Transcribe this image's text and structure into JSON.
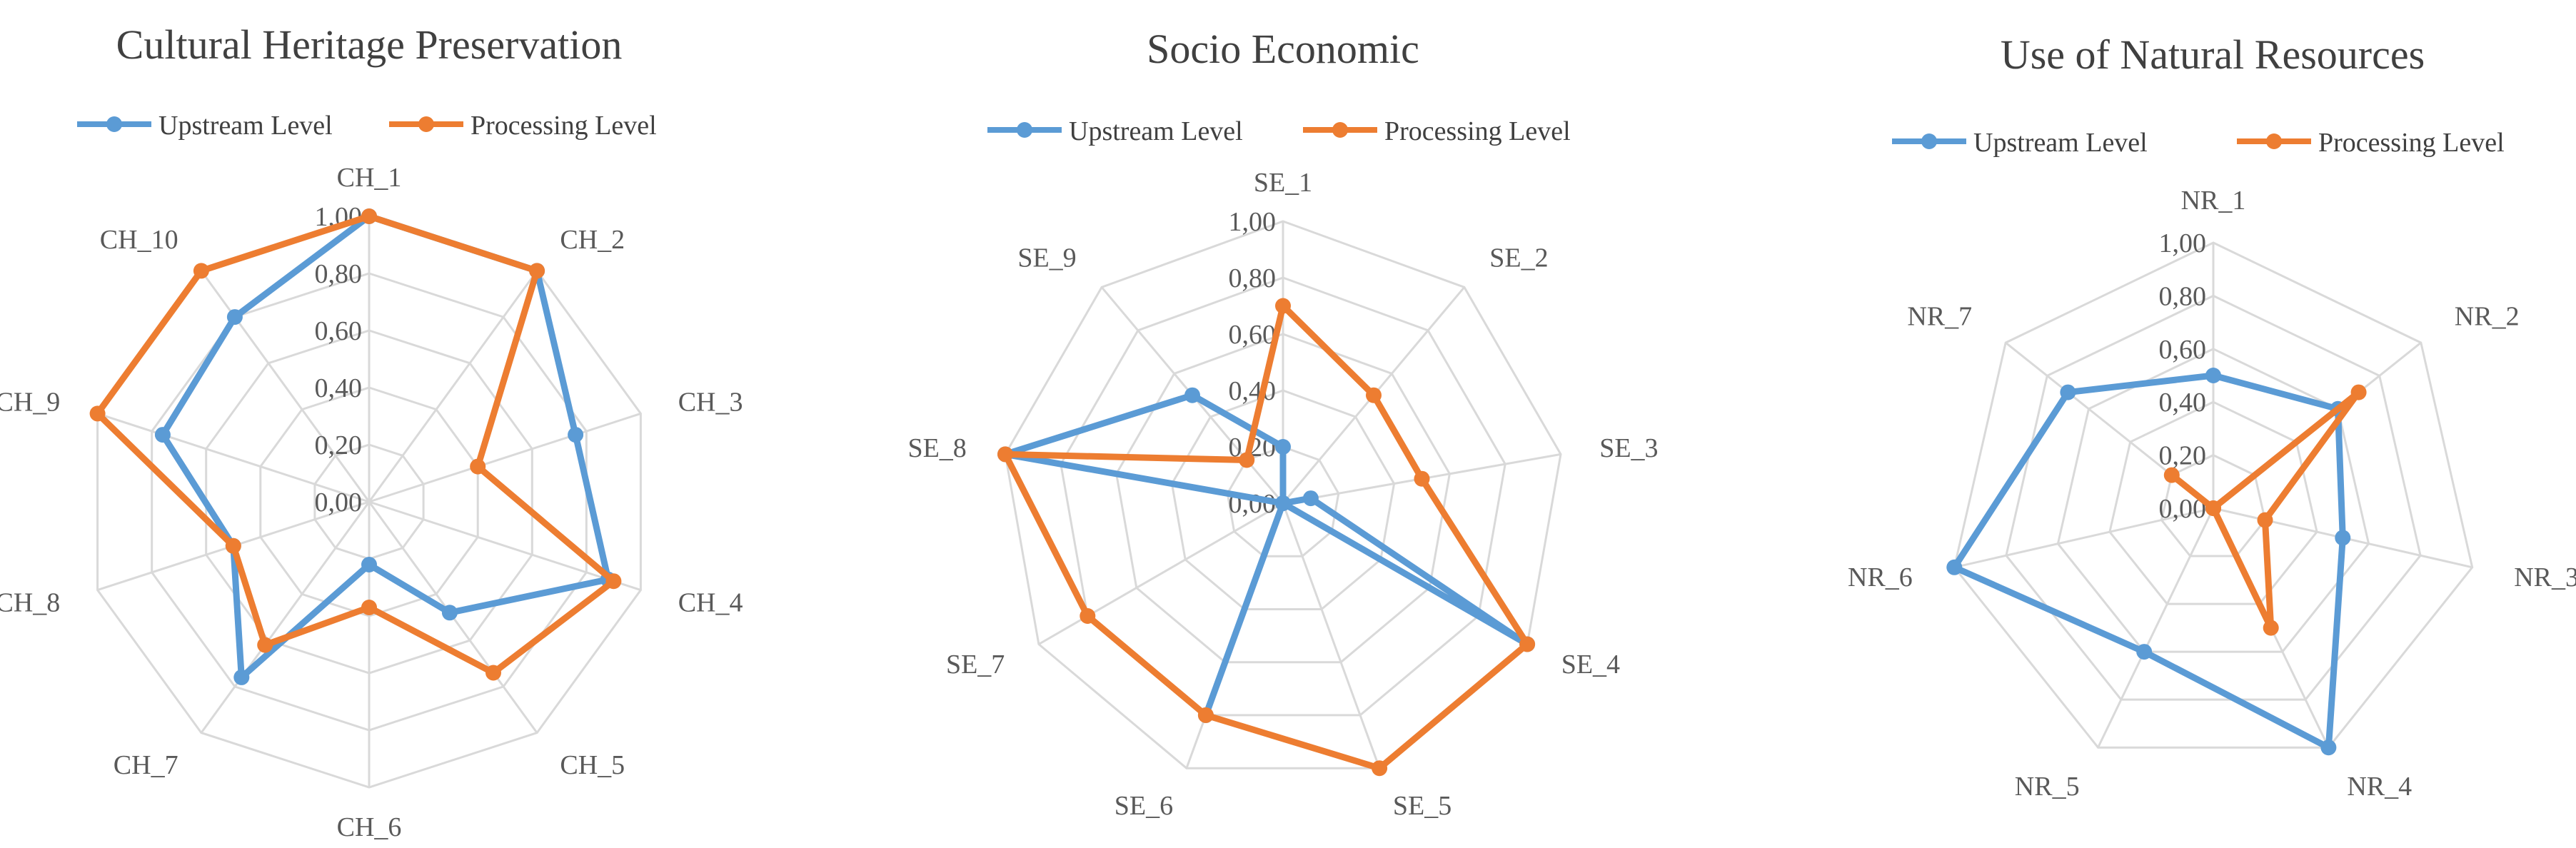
{
  "colors": {
    "upstream": "#5B9BD5",
    "processing": "#ED7D31",
    "grid": "#D9D9D9",
    "text": "#404040"
  },
  "tick_labels": [
    "0,00",
    "0,20",
    "0,40",
    "0,60",
    "0,80",
    "1,00"
  ],
  "chart_data": [
    {
      "type": "radar",
      "title": "Cultural Heritage Preservation",
      "categories": [
        "CH_1",
        "CH_2",
        "CH_3",
        "CH_4",
        "CH_5",
        "CH_6",
        "CH_7",
        "CH_8",
        "CH_9",
        "CH_10"
      ],
      "rlim": [
        0,
        1
      ],
      "legend": "top",
      "series": [
        {
          "name": "Upstream Level",
          "values": [
            1.0,
            1.0,
            0.76,
            0.88,
            0.48,
            0.22,
            0.76,
            0.5,
            0.76,
            0.8
          ]
        },
        {
          "name": "Processing Level",
          "values": [
            1.0,
            1.0,
            0.4,
            0.9,
            0.74,
            0.37,
            0.62,
            0.5,
            1.0,
            1.0
          ]
        }
      ]
    },
    {
      "type": "radar",
      "title": "Socio Economic",
      "categories": [
        "SE_1",
        "SE_2",
        "SE_3",
        "SE_4",
        "SE_5",
        "SE_6",
        "SE_7",
        "SE_8",
        "SE_9"
      ],
      "rlim": [
        0,
        1
      ],
      "legend": "top",
      "series": [
        {
          "name": "Upstream Level",
          "values": [
            0.2,
            0.0,
            0.1,
            1.0,
            0.0,
            0.8,
            0.0,
            1.0,
            0.5
          ]
        },
        {
          "name": "Processing Level",
          "values": [
            0.7,
            0.5,
            0.5,
            1.0,
            1.0,
            0.8,
            0.8,
            1.0,
            0.2
          ]
        }
      ]
    },
    {
      "type": "radar",
      "title": "Use of Natural Resources",
      "categories": [
        "NR_1",
        "NR_2",
        "NR_3",
        "NR_4",
        "NR_5",
        "NR_6",
        "NR_7"
      ],
      "rlim": [
        0,
        1
      ],
      "legend": "top",
      "series": [
        {
          "name": "Upstream Level",
          "values": [
            0.5,
            0.6,
            0.5,
            1.0,
            0.6,
            1.0,
            0.7
          ]
        },
        {
          "name": "Processing Level",
          "values": [
            0.0,
            0.7,
            0.2,
            0.5,
            0.0,
            0.0,
            0.2
          ]
        }
      ]
    }
  ]
}
